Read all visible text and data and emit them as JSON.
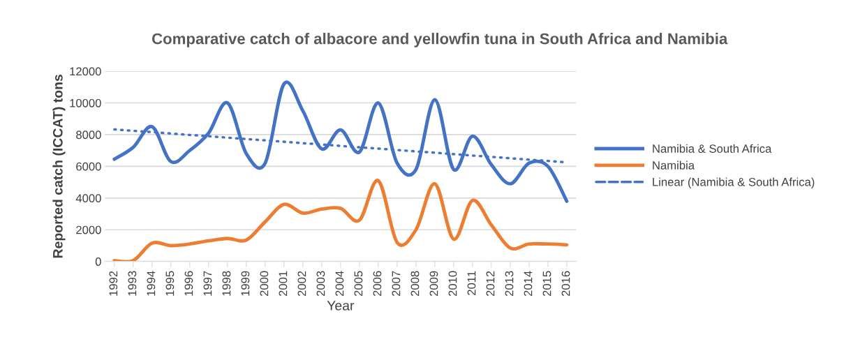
{
  "chart_data": {
    "type": "line",
    "title": "Comparative catch of albacore and yellowfin tuna in South Africa and Namibia",
    "xlabel": "Year",
    "ylabel": "Reported catch (ICCAT) tons",
    "categories": [
      "1992",
      "1993",
      "1994",
      "1995",
      "1996",
      "1997",
      "1998",
      "1999",
      "2000",
      "2001",
      "2002",
      "2003",
      "2004",
      "2005",
      "2006",
      "2007",
      "2008",
      "2009",
      "2010",
      "2011",
      "2012",
      "2013",
      "2014",
      "2015",
      "2016"
    ],
    "series": [
      {
        "name": "Namibia & South Africa",
        "color": "#4472c4",
        "values": [
          6450,
          7200,
          8500,
          6300,
          7000,
          8100,
          10000,
          6800,
          6200,
          11200,
          9500,
          7100,
          8300,
          6900,
          10000,
          6200,
          5800,
          10200,
          5800,
          7900,
          6100,
          4900,
          6200,
          6000,
          3800
        ]
      },
      {
        "name": "Namibia",
        "color": "#ed7d31",
        "values": [
          50,
          50,
          1150,
          1000,
          1100,
          1300,
          1450,
          1350,
          2500,
          3600,
          3050,
          3300,
          3350,
          2600,
          5100,
          1200,
          2000,
          4900,
          1400,
          3850,
          2300,
          850,
          1100,
          1100,
          1050
        ]
      },
      {
        "name": "Linear (Namibia & South Africa)",
        "color": "#4472c4",
        "line_style": "dotted",
        "values": [
          8330,
          8240,
          8160,
          8070,
          7980,
          7900,
          7810,
          7720,
          7640,
          7550,
          7460,
          7380,
          7290,
          7200,
          7120,
          7030,
          6940,
          6860,
          6770,
          6680,
          6600,
          6510,
          6420,
          6340,
          6250
        ]
      }
    ],
    "ylim": [
      0,
      12000
    ],
    "yticks": [
      0,
      2000,
      4000,
      6000,
      8000,
      10000,
      12000
    ],
    "grid": "y",
    "legend": "right",
    "marker": "none"
  }
}
